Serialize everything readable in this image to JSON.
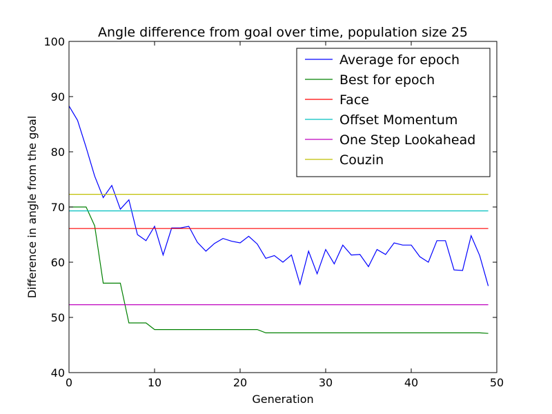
{
  "chart_data": {
    "type": "line",
    "title": "Angle difference from goal over time, population size 25",
    "xlabel": "Generation",
    "ylabel": "Difference in angle from the goal",
    "xlim": [
      0,
      50
    ],
    "ylim": [
      40,
      100
    ],
    "xticks": [
      "0",
      "10",
      "20",
      "30",
      "40",
      "50"
    ],
    "yticks": [
      "40",
      "50",
      "60",
      "70",
      "80",
      "90",
      "100"
    ],
    "legend_position": "top-right",
    "series": [
      {
        "name": "Average for epoch",
        "color": "#0000ff",
        "x": [
          0,
          1,
          2,
          3,
          4,
          5,
          6,
          7,
          8,
          9,
          10,
          11,
          12,
          13,
          14,
          15,
          16,
          17,
          18,
          19,
          20,
          21,
          22,
          23,
          24,
          25,
          26,
          27,
          28,
          29,
          30,
          31,
          32,
          33,
          34,
          35,
          36,
          37,
          38,
          39,
          40,
          41,
          42,
          43,
          44,
          45,
          46,
          47,
          48,
          49
        ],
        "y": [
          88.3,
          85.7,
          80.8,
          75.6,
          71.7,
          73.9,
          69.6,
          71.3,
          65.0,
          63.9,
          66.5,
          61.3,
          66.2,
          66.2,
          66.5,
          63.6,
          62.0,
          63.4,
          64.3,
          63.8,
          63.5,
          64.7,
          63.3,
          60.7,
          61.2,
          60.0,
          61.3,
          56.0,
          62.0,
          57.9,
          62.3,
          59.7,
          63.1,
          61.3,
          61.4,
          59.2,
          62.3,
          61.4,
          63.5,
          63.1,
          63.1,
          61.0,
          60.0,
          63.9,
          63.9,
          58.6,
          58.5,
          64.8,
          61.2,
          55.7
        ]
      },
      {
        "name": "Best for epoch",
        "color": "#008000",
        "x": [
          0,
          1,
          2,
          3,
          4,
          5,
          6,
          7,
          8,
          9,
          10,
          11,
          12,
          13,
          14,
          15,
          16,
          17,
          18,
          19,
          20,
          21,
          22,
          23,
          24,
          25,
          26,
          27,
          28,
          29,
          30,
          31,
          32,
          33,
          34,
          35,
          36,
          37,
          38,
          39,
          40,
          41,
          42,
          43,
          44,
          45,
          46,
          47,
          48,
          49
        ],
        "y": [
          70.0,
          70.0,
          70.0,
          66.6,
          56.2,
          56.2,
          56.2,
          49.0,
          49.0,
          49.0,
          47.8,
          47.8,
          47.8,
          47.8,
          47.8,
          47.8,
          47.8,
          47.8,
          47.8,
          47.8,
          47.8,
          47.8,
          47.8,
          47.2,
          47.2,
          47.2,
          47.2,
          47.2,
          47.2,
          47.2,
          47.2,
          47.2,
          47.2,
          47.2,
          47.2,
          47.2,
          47.2,
          47.2,
          47.2,
          47.2,
          47.2,
          47.2,
          47.2,
          47.2,
          47.2,
          47.2,
          47.2,
          47.2,
          47.2,
          47.1
        ]
      },
      {
        "name": "Face",
        "color": "#ff0000",
        "x": [
          0,
          49
        ],
        "y": [
          66.1,
          66.1
        ]
      },
      {
        "name": "Offset Momentum",
        "color": "#00bfbf",
        "x": [
          0,
          49
        ],
        "y": [
          69.3,
          69.3
        ]
      },
      {
        "name": "One Step Lookahead",
        "color": "#bf00bf",
        "x": [
          0,
          49
        ],
        "y": [
          52.3,
          52.3
        ]
      },
      {
        "name": "Couzin",
        "color": "#bfbf00",
        "x": [
          0,
          49
        ],
        "y": [
          72.3,
          72.3
        ]
      }
    ]
  }
}
